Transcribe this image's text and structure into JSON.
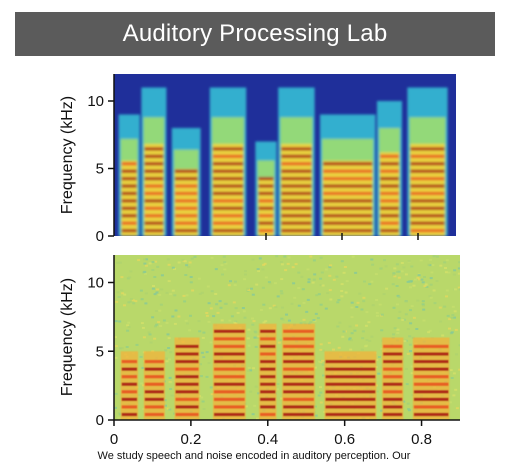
{
  "header": {
    "title": "Auditory Processing Lab"
  },
  "caption": "We study speech and noise encoded in auditory perception. Our",
  "colors": {
    "banner": "#5b5b5b",
    "low": "#1f2f9a",
    "mid": "#f7e43a",
    "high": "#a81a14"
  },
  "chart_data": [
    {
      "type": "heatmap",
      "title": "",
      "xlabel": "",
      "ylabel": "Frequency (kHz)",
      "xlim": [
        0,
        0.9
      ],
      "ylim": [
        0,
        12
      ],
      "yticks": [
        0,
        5,
        10
      ],
      "xticks": [],
      "background": "blue",
      "segments": [
        {
          "t": [
            0.02,
            0.06
          ],
          "fmax": 9
        },
        {
          "t": [
            0.08,
            0.13
          ],
          "fmax": 11
        },
        {
          "t": [
            0.16,
            0.22
          ],
          "fmax": 8
        },
        {
          "t": [
            0.26,
            0.34
          ],
          "fmax": 11
        },
        {
          "t": [
            0.38,
            0.42
          ],
          "fmax": 7
        },
        {
          "t": [
            0.44,
            0.52
          ],
          "fmax": 11
        },
        {
          "t": [
            0.55,
            0.68
          ],
          "fmax": 9
        },
        {
          "t": [
            0.7,
            0.75
          ],
          "fmax": 10
        },
        {
          "t": [
            0.78,
            0.87
          ],
          "fmax": 11
        }
      ]
    },
    {
      "type": "heatmap",
      "title": "",
      "xlabel": "",
      "ylabel": "Frequency (kHz)",
      "xlim": [
        0,
        0.9
      ],
      "ylim": [
        0,
        12
      ],
      "yticks": [
        0,
        5,
        10
      ],
      "xticks": [
        0,
        0.2,
        0.4,
        0.6,
        0.8
      ],
      "background": "noisy yellow-green",
      "segments": [
        {
          "t": [
            0.02,
            0.06
          ],
          "fmax": 5
        },
        {
          "t": [
            0.08,
            0.13
          ],
          "fmax": 5
        },
        {
          "t": [
            0.16,
            0.22
          ],
          "fmax": 6
        },
        {
          "t": [
            0.26,
            0.34
          ],
          "fmax": 7
        },
        {
          "t": [
            0.38,
            0.42
          ],
          "fmax": 7
        },
        {
          "t": [
            0.44,
            0.52
          ],
          "fmax": 7
        },
        {
          "t": [
            0.55,
            0.68
          ],
          "fmax": 5
        },
        {
          "t": [
            0.7,
            0.75
          ],
          "fmax": 6
        },
        {
          "t": [
            0.78,
            0.87
          ],
          "fmax": 6
        }
      ]
    }
  ]
}
